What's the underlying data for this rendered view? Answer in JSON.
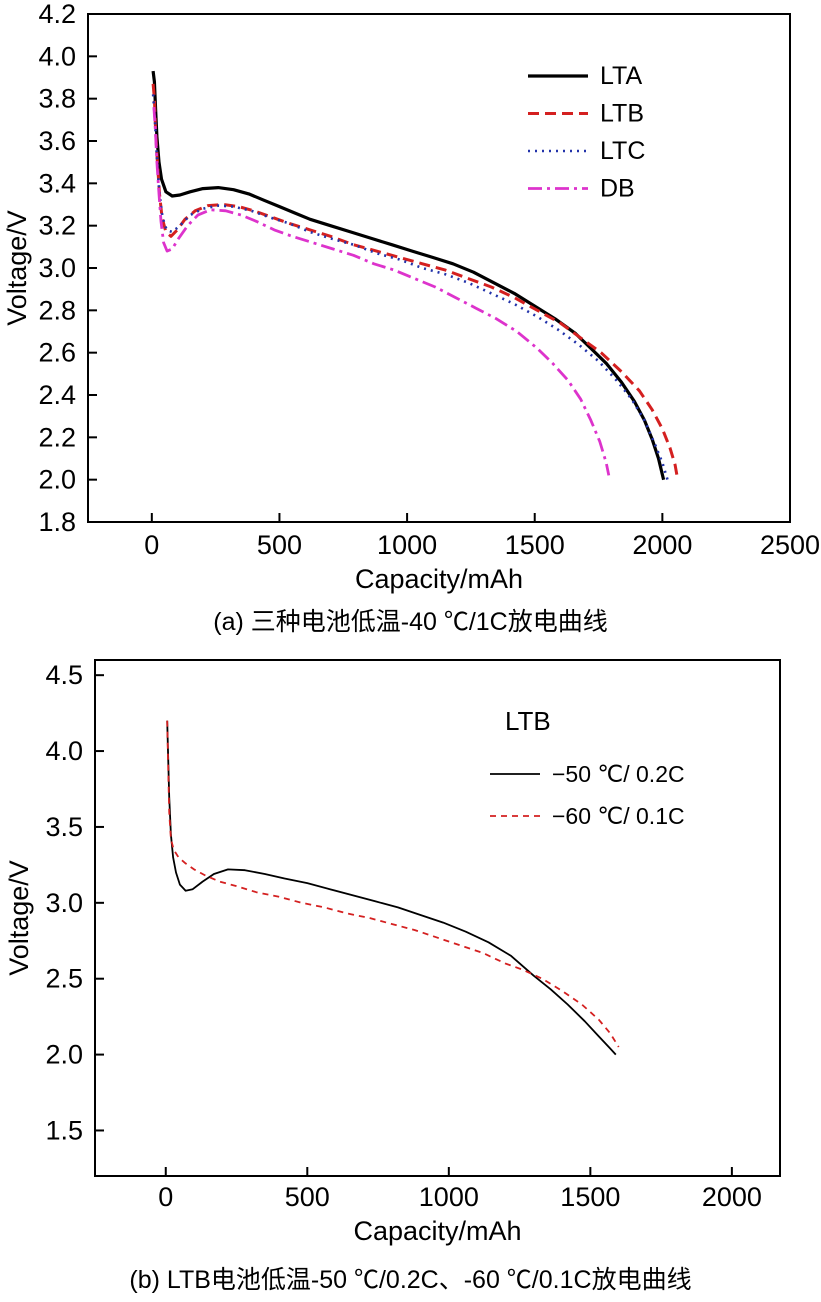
{
  "page": {
    "background": "#ffffff"
  },
  "chart_data": [
    {
      "id": "chart-a",
      "type": "line",
      "caption": "(a) 三种电池低温-40 ℃/1C放电曲线",
      "xlabel": "Capacity/mAh",
      "ylabel": "Voltage/V",
      "x_domain": [
        -250,
        2500
      ],
      "y_domain": [
        1.8,
        4.2
      ],
      "x_ticks": [
        0,
        500,
        1000,
        1500,
        2000,
        2500
      ],
      "x_tick_labels": [
        "0",
        "500",
        "1000",
        "1500",
        "2000",
        "2500"
      ],
      "y_ticks": [
        4.2,
        4.0,
        3.8,
        3.6,
        3.4,
        3.2,
        3.0,
        2.8,
        2.6,
        2.4,
        2.2,
        2.0,
        1.8
      ],
      "y_tick_labels": [
        "4.2",
        "4.0",
        "3.8",
        "3.6",
        "3.4",
        "3.2",
        "3.0",
        "2.8",
        "2.6",
        "2.4",
        "2.2",
        "2.0",
        "1.8"
      ],
      "grid": false,
      "legend_position": "top-right-inside",
      "series": [
        {
          "key": "LTA",
          "name": "LTA",
          "color": "#000000",
          "dash": "",
          "width": 3.2,
          "points": [
            [
              5,
              3.93
            ],
            [
              10,
              3.88
            ],
            [
              15,
              3.75
            ],
            [
              20,
              3.62
            ],
            [
              28,
              3.5
            ],
            [
              38,
              3.42
            ],
            [
              55,
              3.36
            ],
            [
              80,
              3.34
            ],
            [
              110,
              3.345
            ],
            [
              150,
              3.36
            ],
            [
              200,
              3.375
            ],
            [
              260,
              3.38
            ],
            [
              320,
              3.37
            ],
            [
              380,
              3.35
            ],
            [
              440,
              3.32
            ],
            [
              500,
              3.29
            ],
            [
              560,
              3.26
            ],
            [
              620,
              3.23
            ],
            [
              700,
              3.2
            ],
            [
              780,
              3.17
            ],
            [
              860,
              3.14
            ],
            [
              940,
              3.11
            ],
            [
              1020,
              3.08
            ],
            [
              1100,
              3.05
            ],
            [
              1180,
              3.02
            ],
            [
              1260,
              2.98
            ],
            [
              1340,
              2.93
            ],
            [
              1420,
              2.88
            ],
            [
              1500,
              2.82
            ],
            [
              1580,
              2.76
            ],
            [
              1660,
              2.69
            ],
            [
              1720,
              2.62
            ],
            [
              1780,
              2.55
            ],
            [
              1840,
              2.46
            ],
            [
              1890,
              2.37
            ],
            [
              1930,
              2.28
            ],
            [
              1960,
              2.19
            ],
            [
              1985,
              2.1
            ],
            [
              2005,
              2.0
            ]
          ]
        },
        {
          "key": "LTB",
          "name": "LTB",
          "color": "#d42020",
          "dash": "11,6",
          "width": 3,
          "points": [
            [
              5,
              3.87
            ],
            [
              10,
              3.8
            ],
            [
              15,
              3.65
            ],
            [
              22,
              3.5
            ],
            [
              30,
              3.35
            ],
            [
              40,
              3.24
            ],
            [
              55,
              3.17
            ],
            [
              75,
              3.15
            ],
            [
              100,
              3.18
            ],
            [
              130,
              3.23
            ],
            [
              170,
              3.27
            ],
            [
              220,
              3.295
            ],
            [
              280,
              3.3
            ],
            [
              340,
              3.29
            ],
            [
              400,
              3.27
            ],
            [
              470,
              3.24
            ],
            [
              540,
              3.21
            ],
            [
              620,
              3.18
            ],
            [
              700,
              3.15
            ],
            [
              790,
              3.11
            ],
            [
              880,
              3.08
            ],
            [
              970,
              3.05
            ],
            [
              1060,
              3.02
            ],
            [
              1150,
              2.99
            ],
            [
              1240,
              2.95
            ],
            [
              1330,
              2.91
            ],
            [
              1420,
              2.86
            ],
            [
              1510,
              2.8
            ],
            [
              1600,
              2.74
            ],
            [
              1680,
              2.67
            ],
            [
              1760,
              2.6
            ],
            [
              1840,
              2.51
            ],
            [
              1910,
              2.42
            ],
            [
              1960,
              2.33
            ],
            [
              2000,
              2.24
            ],
            [
              2030,
              2.15
            ],
            [
              2050,
              2.07
            ],
            [
              2060,
              2.0
            ]
          ]
        },
        {
          "key": "LTC",
          "name": "LTC",
          "color": "#2233aa",
          "dash": "2,5",
          "width": 2.6,
          "points": [
            [
              5,
              3.82
            ],
            [
              12,
              3.7
            ],
            [
              20,
              3.52
            ],
            [
              30,
              3.35
            ],
            [
              42,
              3.24
            ],
            [
              58,
              3.18
            ],
            [
              80,
              3.17
            ],
            [
              110,
              3.2
            ],
            [
              150,
              3.25
            ],
            [
              200,
              3.28
            ],
            [
              260,
              3.295
            ],
            [
              320,
              3.29
            ],
            [
              390,
              3.27
            ],
            [
              460,
              3.24
            ],
            [
              540,
              3.21
            ],
            [
              620,
              3.17
            ],
            [
              700,
              3.14
            ],
            [
              790,
              3.11
            ],
            [
              880,
              3.07
            ],
            [
              970,
              3.04
            ],
            [
              1060,
              3.0
            ],
            [
              1150,
              2.97
            ],
            [
              1240,
              2.93
            ],
            [
              1330,
              2.88
            ],
            [
              1420,
              2.83
            ],
            [
              1510,
              2.77
            ],
            [
              1590,
              2.71
            ],
            [
              1670,
              2.64
            ],
            [
              1750,
              2.56
            ],
            [
              1820,
              2.47
            ],
            [
              1880,
              2.38
            ],
            [
              1930,
              2.28
            ],
            [
              1970,
              2.17
            ],
            [
              2000,
              2.08
            ],
            [
              2020,
              2.0
            ]
          ]
        },
        {
          "key": "DB",
          "name": "DB",
          "color": "#dd33cc",
          "dash": "14,5,3,5",
          "width": 2.8,
          "points": [
            [
              8,
              3.76
            ],
            [
              14,
              3.65
            ],
            [
              20,
              3.5
            ],
            [
              28,
              3.35
            ],
            [
              36,
              3.22
            ],
            [
              46,
              3.12
            ],
            [
              60,
              3.08
            ],
            [
              80,
              3.09
            ],
            [
              105,
              3.14
            ],
            [
              140,
              3.2
            ],
            [
              180,
              3.25
            ],
            [
              230,
              3.275
            ],
            [
              290,
              3.27
            ],
            [
              350,
              3.25
            ],
            [
              410,
              3.22
            ],
            [
              480,
              3.18
            ],
            [
              550,
              3.15
            ],
            [
              630,
              3.12
            ],
            [
              710,
              3.09
            ],
            [
              790,
              3.06
            ],
            [
              870,
              3.02
            ],
            [
              950,
              2.99
            ],
            [
              1030,
              2.95
            ],
            [
              1110,
              2.91
            ],
            [
              1190,
              2.86
            ],
            [
              1270,
              2.81
            ],
            [
              1350,
              2.76
            ],
            [
              1430,
              2.7
            ],
            [
              1510,
              2.62
            ],
            [
              1570,
              2.55
            ],
            [
              1630,
              2.47
            ],
            [
              1680,
              2.38
            ],
            [
              1720,
              2.28
            ],
            [
              1755,
              2.18
            ],
            [
              1780,
              2.08
            ],
            [
              1790,
              2.02
            ]
          ]
        }
      ]
    },
    {
      "id": "chart-b",
      "type": "line",
      "caption": "(b) LTB电池低温-50 ℃/0.2C、-60 ℃/0.1C放电曲线",
      "legend_title": "LTB",
      "xlabel": "Capacity/mAh",
      "ylabel": "Voltage/V",
      "x_domain": [
        -250,
        2170
      ],
      "y_domain": [
        1.2,
        4.6
      ],
      "x_ticks": [
        0,
        500,
        1000,
        1500,
        2000
      ],
      "x_tick_labels": [
        "0",
        "500",
        "1000",
        "1500",
        "2000"
      ],
      "y_ticks": [
        4.5,
        4.0,
        3.5,
        3.0,
        2.5,
        2.0,
        1.5
      ],
      "y_tick_labels": [
        "4.5",
        "4.0",
        "3.5",
        "3.0",
        "2.5",
        "2.0",
        "1.5"
      ],
      "grid": false,
      "legend_position": "top-right-inside",
      "series": [
        {
          "key": "LTB-50C-02C",
          "name": "−50 ℃/ 0.2C",
          "color": "#000000",
          "dash": "",
          "width": 1.8,
          "points": [
            [
              5,
              4.2
            ],
            [
              8,
              4.0
            ],
            [
              12,
              3.7
            ],
            [
              18,
              3.45
            ],
            [
              26,
              3.3
            ],
            [
              36,
              3.2
            ],
            [
              50,
              3.12
            ],
            [
              70,
              3.08
            ],
            [
              95,
              3.09
            ],
            [
              130,
              3.14
            ],
            [
              170,
              3.19
            ],
            [
              220,
              3.22
            ],
            [
              280,
              3.215
            ],
            [
              350,
              3.19
            ],
            [
              420,
              3.16
            ],
            [
              500,
              3.13
            ],
            [
              580,
              3.09
            ],
            [
              660,
              3.05
            ],
            [
              740,
              3.01
            ],
            [
              820,
              2.97
            ],
            [
              900,
              2.92
            ],
            [
              980,
              2.87
            ],
            [
              1060,
              2.81
            ],
            [
              1140,
              2.74
            ],
            [
              1220,
              2.65
            ],
            [
              1300,
              2.52
            ],
            [
              1360,
              2.43
            ],
            [
              1420,
              2.33
            ],
            [
              1480,
              2.22
            ],
            [
              1530,
              2.12
            ],
            [
              1570,
              2.04
            ],
            [
              1590,
              2.0
            ]
          ]
        },
        {
          "key": "LTB-60C-01C",
          "name": "−60 ℃/ 0.1C",
          "color": "#d42020",
          "dash": "6,5",
          "width": 1.8,
          "points": [
            [
              5,
              4.2
            ],
            [
              8,
              3.95
            ],
            [
              12,
              3.6
            ],
            [
              18,
              3.42
            ],
            [
              28,
              3.35
            ],
            [
              45,
              3.3
            ],
            [
              70,
              3.26
            ],
            [
              100,
              3.22
            ],
            [
              140,
              3.18
            ],
            [
              190,
              3.14
            ],
            [
              250,
              3.11
            ],
            [
              320,
              3.07
            ],
            [
              400,
              3.04
            ],
            [
              480,
              3.0
            ],
            [
              560,
              2.97
            ],
            [
              640,
              2.93
            ],
            [
              720,
              2.9
            ],
            [
              800,
              2.86
            ],
            [
              880,
              2.82
            ],
            [
              960,
              2.77
            ],
            [
              1040,
              2.72
            ],
            [
              1120,
              2.67
            ],
            [
              1200,
              2.6
            ],
            [
              1260,
              2.56
            ],
            [
              1330,
              2.5
            ],
            [
              1400,
              2.42
            ],
            [
              1470,
              2.33
            ],
            [
              1530,
              2.23
            ],
            [
              1570,
              2.14
            ],
            [
              1600,
              2.05
            ]
          ]
        }
      ]
    }
  ]
}
